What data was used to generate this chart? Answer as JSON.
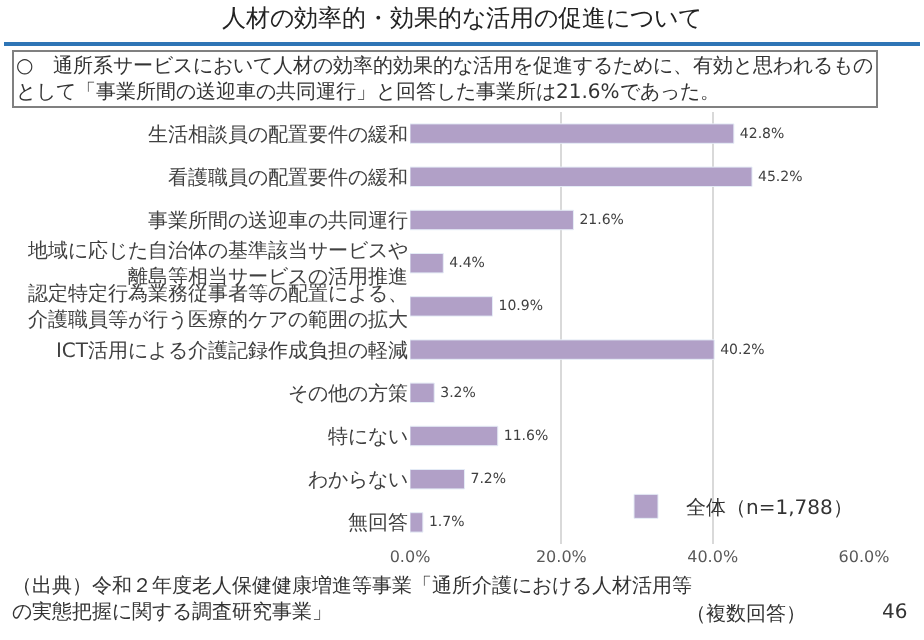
{
  "chart_data": {
    "type": "bar",
    "orientation": "horizontal",
    "title": "人材の効率的・効果的な活用の促進について",
    "categories": [
      "生活相談員の配置要件の緩和",
      "看護職員の配置要件の緩和",
      "事業所間の送迎車の共同運行",
      "地域に応じた自治体の基準該当サービスや離島等相当サービスの活用推進",
      "認定特定行為業務従事者等の配置による、介護職員等が行う医療的ケアの範囲の拡大",
      "ICT活用による介護記録作成負担の軽減",
      "その他の方策",
      "特にない",
      "わからない",
      "無回答"
    ],
    "series": [
      {
        "name": "全体（n=1,788）",
        "color": "#b1a0c7",
        "values": [
          42.8,
          45.2,
          21.6,
          4.4,
          10.9,
          40.2,
          3.2,
          11.6,
          7.2,
          1.7
        ],
        "value_labels": [
          "42.8%",
          "45.2%",
          "21.6%",
          "4.4%",
          "10.9%",
          "40.2%",
          "3.2%",
          "11.6%",
          "7.2%",
          "1.7%"
        ]
      }
    ],
    "xlim": [
      0,
      60
    ],
    "xticks": [
      {
        "value": 0,
        "label": "0.0%"
      },
      {
        "value": 20,
        "label": "20.0%"
      },
      {
        "value": 40,
        "label": "40.0%"
      },
      {
        "value": 60,
        "label": "60.0%"
      }
    ],
    "grid": "x",
    "legend": "bottom right",
    "annotations": [
      "○　通所系サービスにおいて人材の効率的効果的な活用を促進するために、有効と思われるものとして「事業所間の送迎車の共同運行」と回答した事業所は21.6%であった。",
      "（出典）令和２年度老人保健健康増進等事業「通所介護における人材活用等の実態把握に関する調査研究事業」",
      "（複数回答）",
      "46"
    ]
  }
}
